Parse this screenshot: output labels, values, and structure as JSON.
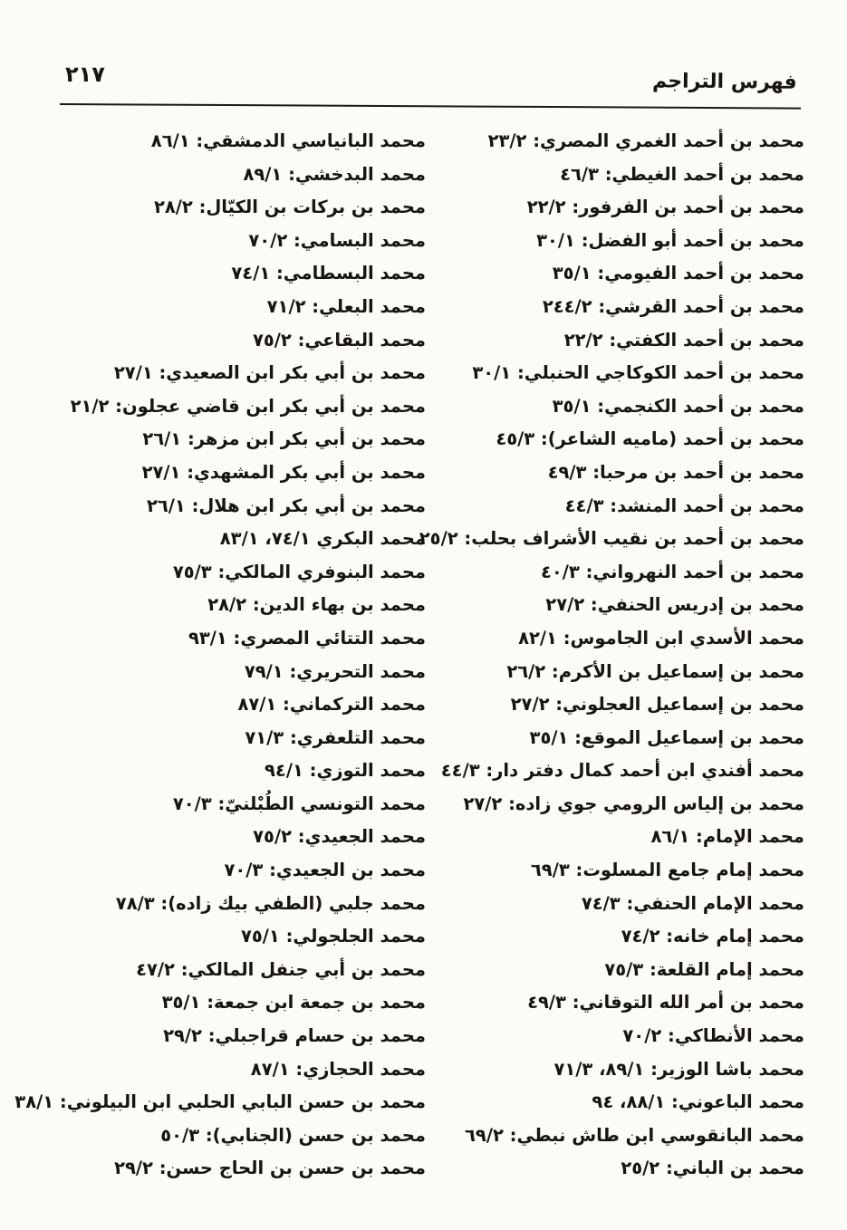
{
  "header": {
    "page_number": "٢١٧",
    "title": "فهرس التراجم"
  },
  "colors": {
    "ink": "#171411",
    "paper": "#fcfbf7"
  },
  "index": {
    "right_column": [
      "محمد بن أحمد الغمري المصري: ٢٣/٢",
      "محمد بن أحمد الغيطي: ٤٦/٣",
      "محمد بن أحمد بن الفرفور: ٢٢/٢",
      "محمد بن أحمد أبو الفضل: ٣٠/١",
      "محمد بن أحمد الفيومي: ٣٥/١",
      "محمد بن أحمد القرشي: ٢٤٤/٢",
      "محمد بن أحمد الكفتي: ٢٢/٢",
      "محمد بن أحمد الكوكاجي الحنبلي: ٣٠/١",
      "محمد بن أحمد الكنجمي: ٣٥/١",
      "محمد بن أحمد (ماميه الشاعر): ٤٥/٣",
      "محمد بن أحمد بن مرحبا: ٤٩/٣",
      "محمد بن أحمد المنشد: ٤٤/٣",
      "محمد بن أحمد بن نقيب الأشراف بحلب: ٢٥/٢",
      "محمد بن أحمد النهرواني: ٤٠/٣",
      "محمد بن إدريس الحنفي: ٢٧/٢",
      "محمد الأسدي ابن الجاموس: ٨٢/١",
      "محمد بن إسماعيل بن الأكرم: ٢٦/٢",
      "محمد بن إسماعيل العجلوني: ٢٧/٢",
      "محمد بن إسماعيل الموقع: ٣٥/١",
      "محمد أفندي ابن أحمد كمال دفتر دار: ٤٤/٣",
      "محمد بن إلياس الرومي جوي زاده: ٢٧/٢",
      "محمد الإمام: ٨٦/١",
      "محمد إمام جامع المسلوت: ٦٩/٣",
      "محمد الإمام الحنفي: ٧٤/٣",
      "محمد إمام خانه: ٧٤/٢",
      "محمد إمام القلعة: ٧٥/٣",
      "محمد بن أمر الله التوقاني: ٤٩/٣",
      "محمد الأنطاكي: ٧٠/٢",
      "محمد باشا الوزير: ٨٩/١، ٧١/٣",
      "محمد الباعوني: ٨٨/١، ٩٤",
      "محمد البانقوسي ابن طاش نبطي: ٦٩/٢",
      "محمد بن الباني: ٢٥/٢"
    ],
    "left_column": [
      "محمد البانياسي الدمشقي: ٨٦/١",
      "محمد البدخشي: ٨٩/١",
      "محمد بن بركات بن الكيّال: ٢٨/٢",
      "محمد البسامي: ٧٠/٢",
      "محمد البسطامي: ٧٤/١",
      "محمد البعلي: ٧١/٢",
      "محمد البقاعي: ٧٥/٢",
      "محمد بن أبي بكر ابن الصعيدي: ٢٧/١",
      "محمد بن أبي بكر ابن قاضي عجلون: ٢١/٢",
      "محمد بن أبي بكر ابن مزهر: ٢٦/١",
      "محمد بن أبي بكر المشهدي: ٢٧/١",
      "محمد بن أبي بكر ابن هلال: ٢٦/١",
      "محمد البكري ٧٤/١، ٨٣/١",
      "محمد البنوفري المالكي: ٧٥/٣",
      "محمد بن بهاء الدين: ٢٨/٢",
      "محمد التتائي المصري: ٩٣/١",
      "محمد التحريري: ٧٩/١",
      "محمد التركماني: ٨٧/١",
      "محمد التلعفري: ٧١/٣",
      "محمد التوزي: ٩٤/١",
      "محمد التونسي الطُبْلنيّ: ٧٠/٣",
      "محمد الجعيدي: ٧٥/٢",
      "محمد بن الجعيدي: ٧٠/٣",
      "محمد جلبي (الطفي بيك زاده): ٧٨/٣",
      "محمد الجلجولي: ٧٥/١",
      "محمد بن أبي جنفل المالكي: ٤٧/٢",
      "محمد بن جمعة ابن جمعة: ٣٥/١",
      "محمد بن حسام قراجبلي: ٢٩/٢",
      "محمد الحجازي: ٨٧/١",
      "محمد بن حسن البابي الحلبي ابن البيلوني: ٣٨/١",
      "محمد بن حسن (الجنابي): ٥٠/٣",
      "محمد بن حسن بن الحاج حسن: ٢٩/٢"
    ]
  }
}
